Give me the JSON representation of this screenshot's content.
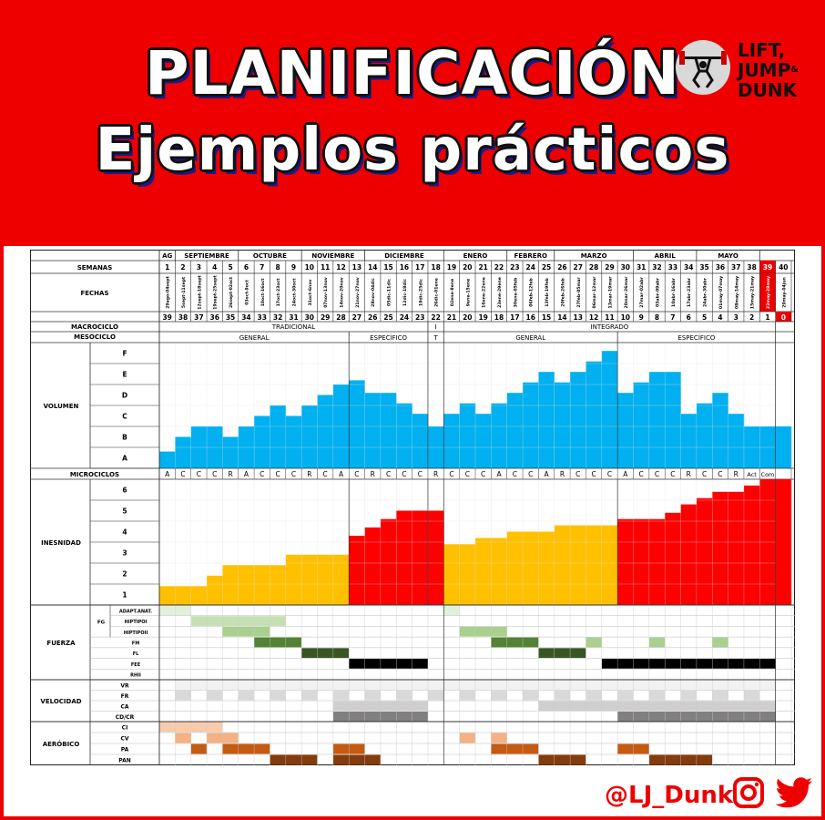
{
  "header": {
    "title_line1": "PLANIFICACIÓN",
    "title_line2": "Ejemplos prácticos",
    "logo_line1": "LIFT,",
    "logo_line2": "JUMP",
    "logo_amp": "&",
    "logo_line3": "DUNK"
  },
  "footer": {
    "handle": "@LJ_Dunk"
  },
  "colors": {
    "brand_red": "#ee0000",
    "volume": "#00b0f0",
    "intensity_general": "#ffc000",
    "intensity_specific": "#ff0000"
  },
  "table": {
    "row_labels": {
      "semanas": "SEMANAS",
      "fechas": "FECHAS",
      "macrociclo": "MACROCICLO",
      "mesociclo": "MESOCICLO",
      "volumen": "VOLUMEN",
      "microciclos": "MICROCICLOS",
      "intensidad": "INESNIDAD",
      "fuerza": "FUERZA",
      "velocidad": "VELOCIDAD",
      "aerobico": "AERÓBICO"
    },
    "months": [
      {
        "label": "AG",
        "weeks": 1
      },
      {
        "label": "SEPTIEMBRE",
        "weeks": 4
      },
      {
        "label": "OCTUBRE",
        "weeks": 4
      },
      {
        "label": "NOVIEMBRE",
        "weeks": 4
      },
      {
        "label": "DICIEMBRE",
        "weeks": 5
      },
      {
        "label": "ENERO",
        "weeks": 4
      },
      {
        "label": "FEBRERO",
        "weeks": 3
      },
      {
        "label": "MARZO",
        "weeks": 5
      },
      {
        "label": "ABRIL",
        "weeks": 4
      },
      {
        "label": "MAYO",
        "weeks": 4
      }
    ],
    "weeks": [
      "1",
      "2",
      "3",
      "4",
      "5",
      "6",
      "7",
      "8",
      "9",
      "10",
      "11",
      "12",
      "13",
      "14",
      "15",
      "16",
      "17",
      "18",
      "19",
      "20",
      "21",
      "22",
      "23",
      "24",
      "25",
      "26",
      "27",
      "28",
      "29",
      "30",
      "31",
      "32",
      "33",
      "34",
      "35",
      "36",
      "37",
      "38",
      "39",
      "40"
    ],
    "dates": [
      "29ago-04sept",
      "5sept-11sept",
      "12sept-18sept",
      "19sept-25sept",
      "26sept-02oct",
      "03oct-9oct",
      "10oct-16oct",
      "17oct-23oct",
      "24oct-30oct",
      "31oct-6nov",
      "07nov-13nov",
      "14nov-20nov",
      "21nov-27nov",
      "28nov-04dic",
      "05dic-11dic",
      "12dic-18dic",
      "19dic-25dic",
      "26dic-01ene",
      "02ene-8ene",
      "9ene-15ene",
      "16ene-22ene",
      "23ene-29ene",
      "30ene-05feb",
      "06feb-12feb",
      "13feb-19feb",
      "20feb-26feb",
      "27feb-05mar",
      "06mar-12mar",
      "13mar-19mar",
      "20mar-26mar",
      "27mar-02abr",
      "03abr-09abr",
      "10abr-16abr",
      "17abr-23abr",
      "24abr-30abr",
      "01may-07may",
      "08may-14may",
      "15may-21may",
      "22may-28may",
      "29may-04jun"
    ],
    "countdown": [
      "39",
      "38",
      "37",
      "36",
      "35",
      "34",
      "33",
      "32",
      "31",
      "30",
      "29",
      "28",
      "27",
      "26",
      "25",
      "24",
      "23",
      "22",
      "21",
      "20",
      "19",
      "18",
      "17",
      "16",
      "15",
      "14",
      "13",
      "12",
      "11",
      "10",
      "9",
      "8",
      "7",
      "6",
      "5",
      "4",
      "3",
      "2",
      "1",
      "0"
    ],
    "macrociclo": [
      {
        "label": "TRADICIONAL",
        "from": 1,
        "to": 17
      },
      {
        "label": "I",
        "from": 18,
        "to": 18
      },
      {
        "label": "INTEGRADO",
        "from": 19,
        "to": 39
      }
    ],
    "mesociclo": [
      {
        "label": "GENERAL",
        "from": 1,
        "to": 12
      },
      {
        "label": "ESPECÍFICO",
        "from": 13,
        "to": 17
      },
      {
        "label": "T",
        "from": 18,
        "to": 18
      },
      {
        "label": "GENERAL",
        "from": 19,
        "to": 29
      },
      {
        "label": "ESPECÍFICO",
        "from": 30,
        "to": 39
      }
    ],
    "volume_levels": [
      "F",
      "E",
      "D",
      "C",
      "B",
      "A"
    ],
    "volume_values": [
      0.8,
      1.5,
      2,
      2,
      1.5,
      2,
      2.5,
      3,
      2.5,
      3,
      3.5,
      4,
      4.2,
      3.6,
      3.6,
      3.1,
      2.6,
      2,
      2.6,
      3.1,
      2.6,
      3.1,
      3.6,
      4.1,
      4.6,
      4.1,
      4.6,
      5.1,
      5.6,
      3.6,
      4.1,
      4.6,
      4.6,
      2.6,
      3.1,
      3.6,
      2.6,
      2,
      2,
      2
    ],
    "microciclos": [
      "A",
      "C",
      "C",
      "C",
      "R",
      "A",
      "C",
      "C",
      "C",
      "R",
      "C",
      "A",
      "C",
      "R",
      "C",
      "C",
      "C",
      "R",
      "C",
      "C",
      "C",
      "A",
      "C",
      "C",
      "A",
      "R",
      "C",
      "C",
      "C",
      "A",
      "C",
      "C",
      "C",
      "R",
      "C",
      "C",
      "R",
      "Act",
      "Com",
      ""
    ],
    "intensity_levels": [
      "6",
      "5",
      "4",
      "3",
      "2",
      "1"
    ],
    "intensity_values": [
      0.9,
      0.9,
      0.9,
      1.4,
      1.9,
      1.9,
      1.9,
      1.9,
      2.4,
      2.4,
      2.4,
      2.4,
      3.3,
      3.7,
      4.1,
      4.5,
      4.5,
      4.5,
      2.9,
      2.9,
      3.2,
      3.2,
      3.5,
      3.5,
      3.5,
      3.8,
      3.8,
      3.8,
      3.8,
      4.1,
      4.1,
      4.1,
      4.4,
      4.8,
      5.1,
      5.4,
      5.4,
      5.7,
      6,
      6
    ],
    "fuerza_group": "FG",
    "fuerza_rows": [
      "ADAPT.ANAT.",
      "HIPTIPOI",
      "HIPTIPOII",
      "FM",
      "FL",
      "FEE",
      "RHII"
    ],
    "velocidad_rows": [
      "VR",
      "FR",
      "CA",
      "CD/CR"
    ],
    "aerobico_rows": [
      "CI",
      "CV",
      "PA",
      "PAN"
    ]
  }
}
